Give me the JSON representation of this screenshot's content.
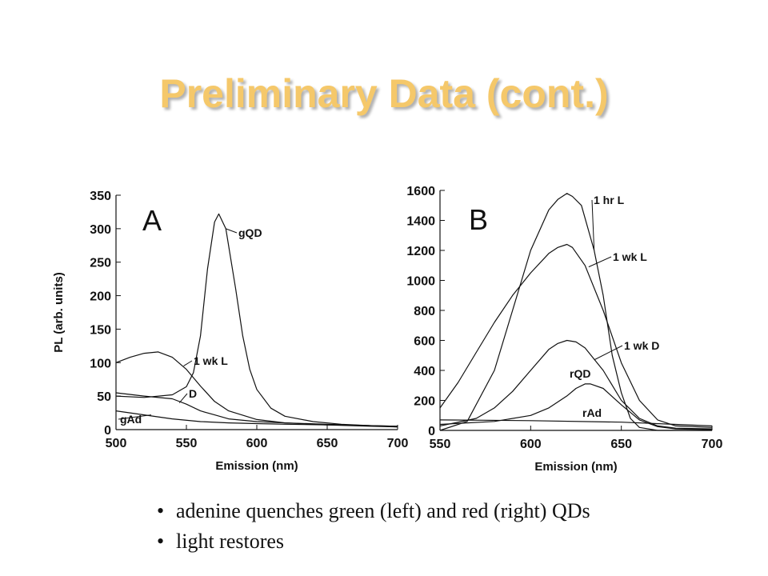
{
  "slide": {
    "title": "Preliminary Data (cont.)",
    "bullets": [
      "adenine quenches green (left) and red (right) QDs",
      "light restores"
    ]
  },
  "chart_data": [
    {
      "type": "line",
      "panel_label": "A",
      "xlabel": "Emission (nm)",
      "ylabel": "PL (arb. units)",
      "xlim": [
        500,
        700
      ],
      "ylim": [
        0,
        350
      ],
      "xticks": [
        500,
        550,
        600,
        650,
        700
      ],
      "yticks": [
        0,
        50,
        100,
        150,
        200,
        250,
        300,
        350
      ],
      "grid": false,
      "series": [
        {
          "name": "gQD",
          "x": [
            500,
            520,
            540,
            550,
            555,
            560,
            565,
            570,
            573,
            578,
            585,
            590,
            595,
            600,
            610,
            620,
            640,
            660,
            680,
            700
          ],
          "y": [
            50,
            48,
            52,
            64,
            85,
            140,
            240,
            310,
            322,
            300,
            210,
            140,
            90,
            60,
            32,
            20,
            12,
            8,
            6,
            5
          ]
        },
        {
          "name": "1 wk L",
          "x": [
            500,
            510,
            520,
            530,
            540,
            550,
            560,
            570,
            580,
            600,
            620,
            650,
            680,
            700
          ],
          "y": [
            100,
            108,
            114,
            116,
            108,
            90,
            65,
            42,
            28,
            15,
            10,
            7,
            5,
            4
          ]
        },
        {
          "name": "D",
          "x": [
            500,
            520,
            540,
            550,
            560,
            570,
            580,
            600,
            620,
            650,
            680,
            700
          ],
          "y": [
            55,
            50,
            46,
            38,
            28,
            22,
            16,
            12,
            10,
            8,
            6,
            4
          ]
        },
        {
          "name": "gAd",
          "x": [
            500,
            520,
            540,
            560,
            580,
            600,
            620,
            650,
            680,
            700
          ],
          "y": [
            28,
            22,
            16,
            12,
            10,
            9,
            8,
            7,
            6,
            5
          ]
        }
      ]
    },
    {
      "type": "line",
      "panel_label": "B",
      "xlabel": "Emission (nm)",
      "ylabel": "",
      "xlim": [
        550,
        700
      ],
      "ylim": [
        0,
        1600
      ],
      "xticks": [
        550,
        600,
        650,
        700
      ],
      "yticks": [
        0,
        200,
        400,
        600,
        800,
        1000,
        1200,
        1400,
        1600
      ],
      "grid": false,
      "series": [
        {
          "name": "1 hr L",
          "x": [
            550,
            565,
            580,
            590,
            600,
            610,
            615,
            620,
            623,
            628,
            635,
            640,
            645,
            650,
            655,
            660,
            670,
            700
          ],
          "y": [
            0,
            60,
            400,
            800,
            1200,
            1470,
            1540,
            1580,
            1560,
            1500,
            1200,
            900,
            500,
            250,
            80,
            20,
            0,
            0
          ]
        },
        {
          "name": "1 wk L",
          "x": [
            550,
            560,
            570,
            580,
            590,
            600,
            610,
            615,
            620,
            623,
            630,
            640,
            650,
            660,
            670,
            680,
            700
          ],
          "y": [
            150,
            320,
            520,
            720,
            900,
            1050,
            1180,
            1220,
            1240,
            1220,
            1100,
            800,
            450,
            200,
            70,
            30,
            20
          ]
        },
        {
          "name": "1 wk D",
          "x": [
            550,
            570,
            580,
            590,
            600,
            610,
            615,
            620,
            625,
            630,
            640,
            650,
            660,
            670,
            680,
            700
          ],
          "y": [
            30,
            80,
            150,
            260,
            400,
            540,
            580,
            600,
            590,
            550,
            400,
            200,
            80,
            30,
            15,
            10
          ]
        },
        {
          "name": "rQD",
          "x": [
            550,
            580,
            600,
            610,
            620,
            625,
            630,
            633,
            640,
            650,
            660,
            670,
            680,
            700
          ],
          "y": [
            40,
            60,
            100,
            150,
            230,
            280,
            310,
            310,
            280,
            170,
            70,
            25,
            10,
            5
          ]
        },
        {
          "name": "rAd",
          "x": [
            550,
            600,
            650,
            680,
            700
          ],
          "y": [
            70,
            65,
            55,
            40,
            30
          ]
        }
      ]
    }
  ]
}
